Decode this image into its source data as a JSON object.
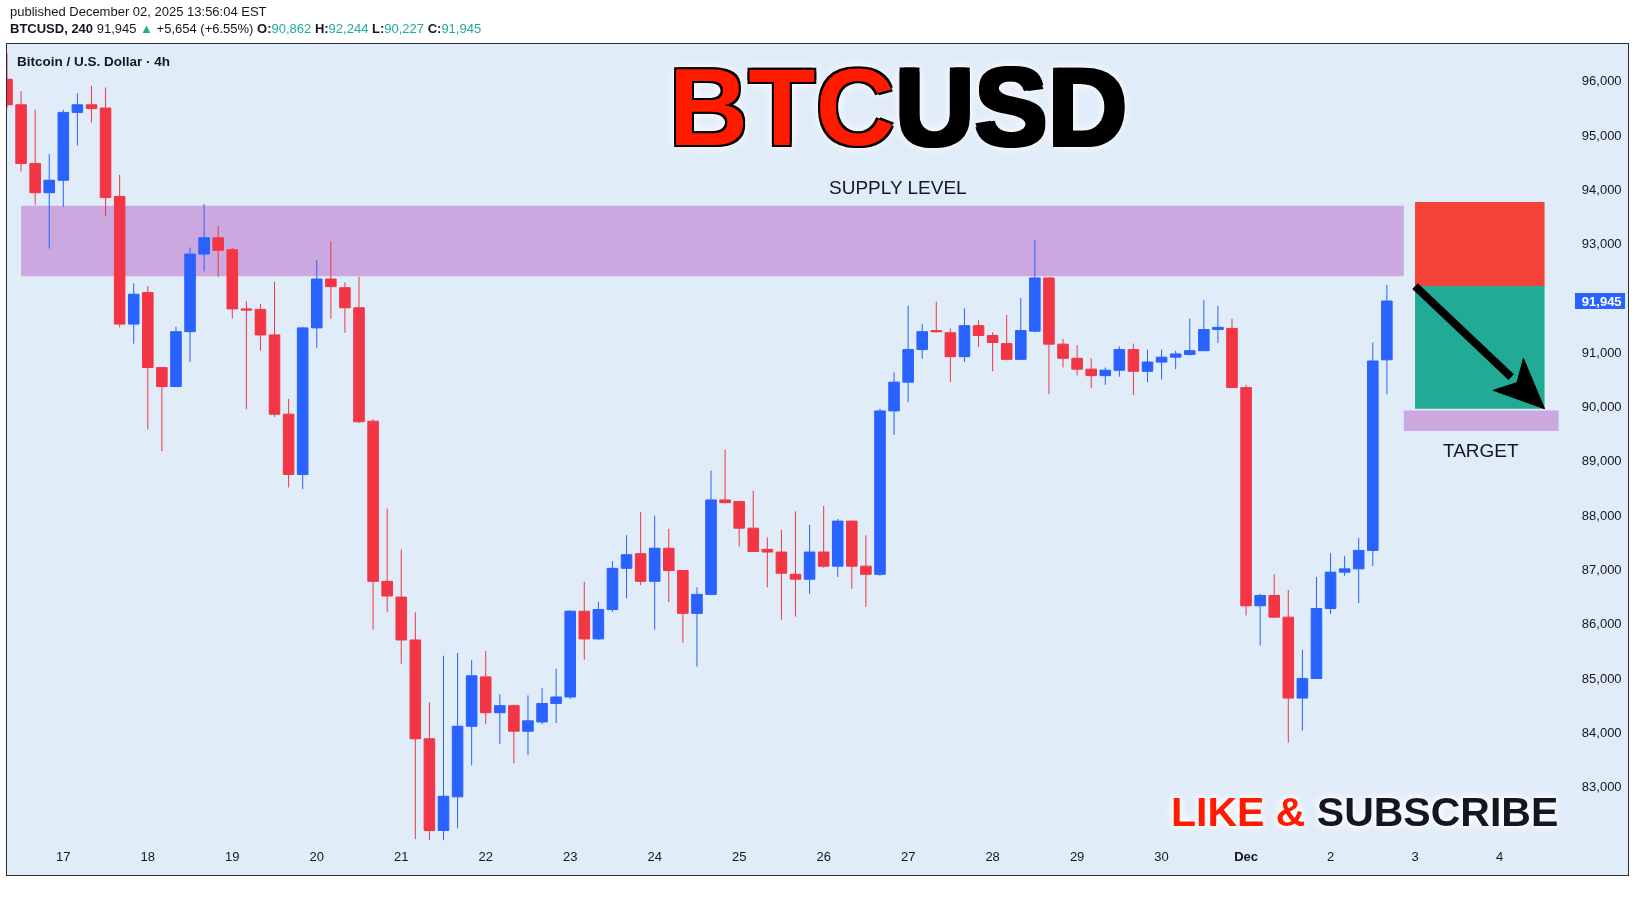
{
  "chart_data": {
    "type": "candlestick",
    "title": "BTCUSD",
    "subtitle": "Bitcoin / U.S. Dollar · 4h",
    "annotations": [
      "published December 02, 2025 13:56:04 EST",
      "BTCUSD, 240 91,945 ▲ +5,654 (+6.55%) O:90,862 H:92,244 L:90,227 C:91,945",
      "LIKE & SUBSCRIBE"
    ],
    "x": [
      "2025-11-16T08:00",
      "2025-11-16T12:00",
      "2025-11-16T16:00",
      "2025-11-16T20:00",
      "2025-11-17T00:00",
      "2025-11-17T04:00",
      "2025-11-17T08:00",
      "2025-11-17T12:00",
      "2025-11-17T16:00",
      "2025-11-17T20:00",
      "2025-11-18T00:00",
      "2025-11-18T04:00",
      "2025-11-18T08:00",
      "2025-11-18T12:00",
      "2025-11-18T16:00",
      "2025-11-18T20:00",
      "2025-11-19T00:00",
      "2025-11-19T04:00",
      "2025-11-19T08:00",
      "2025-11-19T12:00",
      "2025-11-19T16:00",
      "2025-11-19T20:00",
      "2025-11-20T00:00",
      "2025-11-20T04:00",
      "2025-11-20T08:00",
      "2025-11-20T12:00",
      "2025-11-20T16:00",
      "2025-11-20T20:00",
      "2025-11-21T00:00",
      "2025-11-21T04:00",
      "2025-11-21T08:00",
      "2025-11-21T12:00",
      "2025-11-21T16:00",
      "2025-11-21T20:00",
      "2025-11-22T00:00",
      "2025-11-22T04:00",
      "2025-11-22T08:00",
      "2025-11-22T12:00",
      "2025-11-22T16:00",
      "2025-11-22T20:00",
      "2025-11-23T00:00",
      "2025-11-23T04:00",
      "2025-11-23T08:00",
      "2025-11-23T12:00",
      "2025-11-23T16:00",
      "2025-11-23T20:00",
      "2025-11-24T00:00",
      "2025-11-24T04:00",
      "2025-11-24T08:00",
      "2025-11-24T12:00",
      "2025-11-24T16:00",
      "2025-11-24T20:00",
      "2025-11-25T00:00",
      "2025-11-25T04:00",
      "2025-11-25T08:00",
      "2025-11-25T12:00",
      "2025-11-25T16:00",
      "2025-11-25T20:00",
      "2025-11-26T00:00",
      "2025-11-26T04:00",
      "2025-11-26T08:00",
      "2025-11-26T12:00",
      "2025-11-26T16:00",
      "2025-11-26T20:00",
      "2025-11-27T00:00",
      "2025-11-27T04:00",
      "2025-11-27T08:00",
      "2025-11-27T12:00",
      "2025-11-27T16:00",
      "2025-11-27T20:00",
      "2025-11-28T00:00",
      "2025-11-28T04:00",
      "2025-11-28T08:00",
      "2025-11-28T12:00",
      "2025-11-28T16:00",
      "2025-11-28T20:00",
      "2025-11-29T00:00",
      "2025-11-29T04:00",
      "2025-11-29T08:00",
      "2025-11-29T12:00",
      "2025-11-29T16:00",
      "2025-11-29T20:00",
      "2025-11-30T00:00",
      "2025-11-30T04:00",
      "2025-11-30T08:00",
      "2025-11-30T12:00",
      "2025-11-30T16:00",
      "2025-11-30T20:00",
      "2025-12-01T00:00",
      "2025-12-01T04:00",
      "2025-12-01T08:00",
      "2025-12-01T12:00",
      "2025-12-01T16:00",
      "2025-12-01T20:00",
      "2025-12-02T00:00",
      "2025-12-02T04:00",
      "2025-12-02T08:00",
      "2025-12-02T12:00",
      "2025-12-02T16:00"
    ],
    "ohlc": [
      [
        96030,
        96510,
        95500,
        95560
      ],
      [
        95560,
        95810,
        94330,
        94480
      ],
      [
        94480,
        95470,
        93720,
        93940
      ],
      [
        93940,
        94650,
        92910,
        94170
      ],
      [
        94170,
        95470,
        93680,
        95420
      ],
      [
        95420,
        95770,
        94810,
        95560
      ],
      [
        95560,
        95910,
        95230,
        95490
      ],
      [
        95500,
        95880,
        93510,
        93850
      ],
      [
        93870,
        94270,
        91460,
        91520
      ],
      [
        91520,
        92270,
        91160,
        92070
      ],
      [
        92100,
        92220,
        89580,
        90720
      ],
      [
        90720,
        90730,
        89180,
        90370
      ],
      [
        90370,
        91470,
        90360,
        91380
      ],
      [
        91380,
        92930,
        90820,
        92810
      ],
      [
        92810,
        93730,
        92490,
        93110
      ],
      [
        93110,
        93330,
        92390,
        92880
      ],
      [
        92890,
        92930,
        91620,
        91800
      ],
      [
        91800,
        91940,
        89950,
        91780
      ],
      [
        91790,
        91890,
        91030,
        91320
      ],
      [
        91320,
        92300,
        89810,
        89860
      ],
      [
        89860,
        90140,
        88510,
        88750
      ],
      [
        88750,
        91470,
        88480,
        91450
      ],
      [
        91450,
        92700,
        91080,
        92350
      ],
      [
        92350,
        93050,
        91620,
        92210
      ],
      [
        92190,
        92290,
        91360,
        91820
      ],
      [
        91820,
        92390,
        89700,
        89720
      ],
      [
        89730,
        89770,
        85890,
        86780
      ],
      [
        86780,
        88120,
        86210,
        86510
      ],
      [
        86490,
        87370,
        85260,
        85700
      ],
      [
        85700,
        86210,
        82030,
        83880
      ],
      [
        83880,
        84550,
        82010,
        82190
      ],
      [
        82190,
        85410,
        82010,
        82820
      ],
      [
        82810,
        85460,
        82230,
        84110
      ],
      [
        84110,
        85330,
        83390,
        85040
      ],
      [
        85020,
        85500,
        84150,
        84360
      ],
      [
        84360,
        84700,
        83780,
        84490
      ],
      [
        84490,
        84510,
        83430,
        84020
      ],
      [
        84020,
        84680,
        83580,
        84210
      ],
      [
        84190,
        84810,
        84150,
        84530
      ],
      [
        84530,
        85170,
        84170,
        84650
      ],
      [
        84650,
        86250,
        84610,
        86230
      ],
      [
        86230,
        86770,
        85340,
        85720
      ],
      [
        85720,
        86400,
        85700,
        86260
      ],
      [
        86260,
        87150,
        86220,
        87020
      ],
      [
        87020,
        87630,
        86470,
        87270
      ],
      [
        87290,
        88060,
        86710,
        86780
      ],
      [
        86780,
        87990,
        85890,
        87390
      ],
      [
        87390,
        87750,
        86400,
        86980
      ],
      [
        86980,
        86990,
        85650,
        86190
      ],
      [
        86190,
        86670,
        85210,
        86540
      ],
      [
        86540,
        88820,
        86530,
        88280
      ],
      [
        88280,
        89210,
        88220,
        88230
      ],
      [
        88250,
        88260,
        87420,
        87760
      ],
      [
        87760,
        88450,
        87320,
        87330
      ],
      [
        87370,
        87590,
        86670,
        87320
      ],
      [
        87320,
        87730,
        86070,
        86930
      ],
      [
        86910,
        88070,
        86130,
        86820
      ],
      [
        86820,
        87820,
        86550,
        87320
      ],
      [
        87320,
        88170,
        87030,
        87060
      ],
      [
        87060,
        87930,
        86860,
        87890
      ],
      [
        87890,
        87900,
        86640,
        87060
      ],
      [
        87060,
        87630,
        86310,
        86910
      ],
      [
        86910,
        89960,
        86880,
        89920
      ],
      [
        89920,
        90630,
        89480,
        90450
      ],
      [
        90450,
        91860,
        90080,
        91050
      ],
      [
        91050,
        91520,
        90880,
        91380
      ],
      [
        91400,
        91930,
        91360,
        91380
      ],
      [
        91360,
        91440,
        90450,
        90920
      ],
      [
        90920,
        91810,
        90820,
        91490
      ],
      [
        91490,
        91590,
        91100,
        91310
      ],
      [
        91310,
        91370,
        90650,
        91180
      ],
      [
        91160,
        91690,
        90850,
        90870
      ],
      [
        90870,
        92000,
        90860,
        91400
      ],
      [
        91390,
        93070,
        91370,
        92370
      ],
      [
        92370,
        92380,
        90230,
        91150
      ],
      [
        91150,
        91250,
        90720,
        90890
      ],
      [
        90890,
        91130,
        90570,
        90690
      ],
      [
        90690,
        90890,
        90340,
        90570
      ],
      [
        90570,
        90720,
        90400,
        90670
      ],
      [
        90670,
        91110,
        90550,
        91050
      ],
      [
        91050,
        91160,
        90210,
        90650
      ],
      [
        90650,
        91050,
        90450,
        90820
      ],
      [
        90820,
        91050,
        90500,
        90910
      ],
      [
        90910,
        91030,
        90690,
        90970
      ],
      [
        90960,
        91620,
        90940,
        91030
      ],
      [
        91030,
        91960,
        91020,
        91420
      ],
      [
        91420,
        91850,
        91170,
        91460
      ],
      [
        91440,
        91620,
        90340,
        90350
      ],
      [
        90350,
        90400,
        86150,
        86330
      ],
      [
        86330,
        86550,
        85600,
        86520
      ],
      [
        86520,
        86910,
        86110,
        86120
      ],
      [
        86120,
        86620,
        83810,
        84630
      ],
      [
        84630,
        85520,
        84030,
        84990
      ],
      [
        84990,
        86860,
        84980,
        86280
      ],
      [
        86280,
        87300,
        86180,
        86950
      ],
      [
        86950,
        87250,
        86880,
        87010
      ],
      [
        87010,
        87580,
        86380,
        87350
      ],
      [
        87350,
        91180,
        87060,
        90840
      ],
      [
        90862,
        92244,
        90227,
        91945
      ]
    ],
    "colors": [
      "#f23645",
      "#f23645",
      "#f23645",
      "#2962ff",
      "#2962ff",
      "#2962ff",
      "#f23645",
      "#f23645",
      "#f23645",
      "#2962ff",
      "#f23645",
      "#f23645",
      "#2962ff",
      "#2962ff",
      "#2962ff",
      "#f23645",
      "#f23645",
      "#f23645",
      "#f23645",
      "#f23645",
      "#f23645",
      "#2962ff",
      "#2962ff",
      "#f23645",
      "#f23645",
      "#f23645",
      "#f23645",
      "#f23645",
      "#f23645",
      "#f23645",
      "#f23645",
      "#2962ff",
      "#2962ff",
      "#2962ff",
      "#f23645",
      "#2962ff",
      "#f23645",
      "#2962ff",
      "#2962ff",
      "#2962ff",
      "#2962ff",
      "#f23645",
      "#2962ff",
      "#2962ff",
      "#2962ff",
      "#f23645",
      "#2962ff",
      "#f23645",
      "#f23645",
      "#2962ff",
      "#2962ff",
      "#f23645",
      "#f23645",
      "#f23645",
      "#f23645",
      "#f23645",
      "#f23645",
      "#2962ff",
      "#f23645",
      "#2962ff",
      "#f23645",
      "#f23645",
      "#2962ff",
      "#2962ff",
      "#2962ff",
      "#2962ff",
      "#f23645",
      "#f23645",
      "#2962ff",
      "#f23645",
      "#f23645",
      "#f23645",
      "#2962ff",
      "#2962ff",
      "#f23645",
      "#f23645",
      "#f23645",
      "#f23645",
      "#2962ff",
      "#2962ff",
      "#f23645",
      "#2962ff",
      "#2962ff",
      "#2962ff",
      "#2962ff",
      "#2962ff",
      "#2962ff",
      "#f23645",
      "#f23645",
      "#2962ff",
      "#f23645",
      "#f23645",
      "#2962ff",
      "#2962ff",
      "#2962ff",
      "#2962ff",
      "#2962ff",
      "#2962ff",
      "#2962ff"
    ],
    "xlim": [
      "2025-11-16T08:00",
      "2025-12-05T12:30"
    ],
    "xticks": [
      {
        "value": "2025-11-17",
        "label": "17"
      },
      {
        "value": "2025-11-18",
        "label": "18"
      },
      {
        "value": "2025-11-19",
        "label": "19"
      },
      {
        "value": "2025-11-20",
        "label": "20"
      },
      {
        "value": "2025-11-21",
        "label": "21"
      },
      {
        "value": "2025-11-22",
        "label": "22"
      },
      {
        "value": "2025-11-23",
        "label": "23"
      },
      {
        "value": "2025-11-24",
        "label": "24"
      },
      {
        "value": "2025-11-25",
        "label": "25"
      },
      {
        "value": "2025-11-26",
        "label": "26"
      },
      {
        "value": "2025-11-27",
        "label": "27"
      },
      {
        "value": "2025-11-28",
        "label": "28"
      },
      {
        "value": "2025-11-29",
        "label": "29"
      },
      {
        "value": "2025-11-30",
        "label": "30"
      },
      {
        "value": "2025-12-01",
        "label": "Dec"
      },
      {
        "value": "2025-12-02",
        "label": "2"
      },
      {
        "value": "2025-12-03",
        "label": "3"
      },
      {
        "value": "2025-12-04",
        "label": "4"
      }
    ],
    "ylim": [
      81370,
      96680
    ],
    "yticks": [
      {
        "value": 83000,
        "label": "83,000"
      },
      {
        "value": 84000,
        "label": "84,000"
      },
      {
        "value": 85000,
        "label": "85,000"
      },
      {
        "value": 86000,
        "label": "86,000"
      },
      {
        "value": 87000,
        "label": "87,000"
      },
      {
        "value": 88000,
        "label": "88,000"
      },
      {
        "value": 89000,
        "label": "89,000"
      },
      {
        "value": 90000,
        "label": "90,000"
      },
      {
        "value": 91000,
        "label": "91,000"
      },
      {
        "value": 91945,
        "label": "91,945"
      },
      {
        "value": 93000,
        "label": "93,000"
      },
      {
        "value": 94000,
        "label": "94,000"
      },
      {
        "value": 95000,
        "label": "95,000"
      },
      {
        "value": 96000,
        "label": "96,000"
      }
    ],
    "bands": [
      {
        "axis": "y",
        "from": 92400,
        "to": 93700,
        "label": "SUPPLY LEVEL",
        "color": "#cba8e0"
      },
      {
        "axis": "y",
        "from": 92220,
        "to": 93770,
        "color": "#f44336"
      },
      {
        "axis": "y",
        "from": 89960,
        "to": 92220,
        "color": "#22ab94"
      },
      {
        "axis": "y",
        "from": 89550,
        "to": 89930,
        "label": "TARGET",
        "color": "#cba8e0"
      }
    ]
  }
}
